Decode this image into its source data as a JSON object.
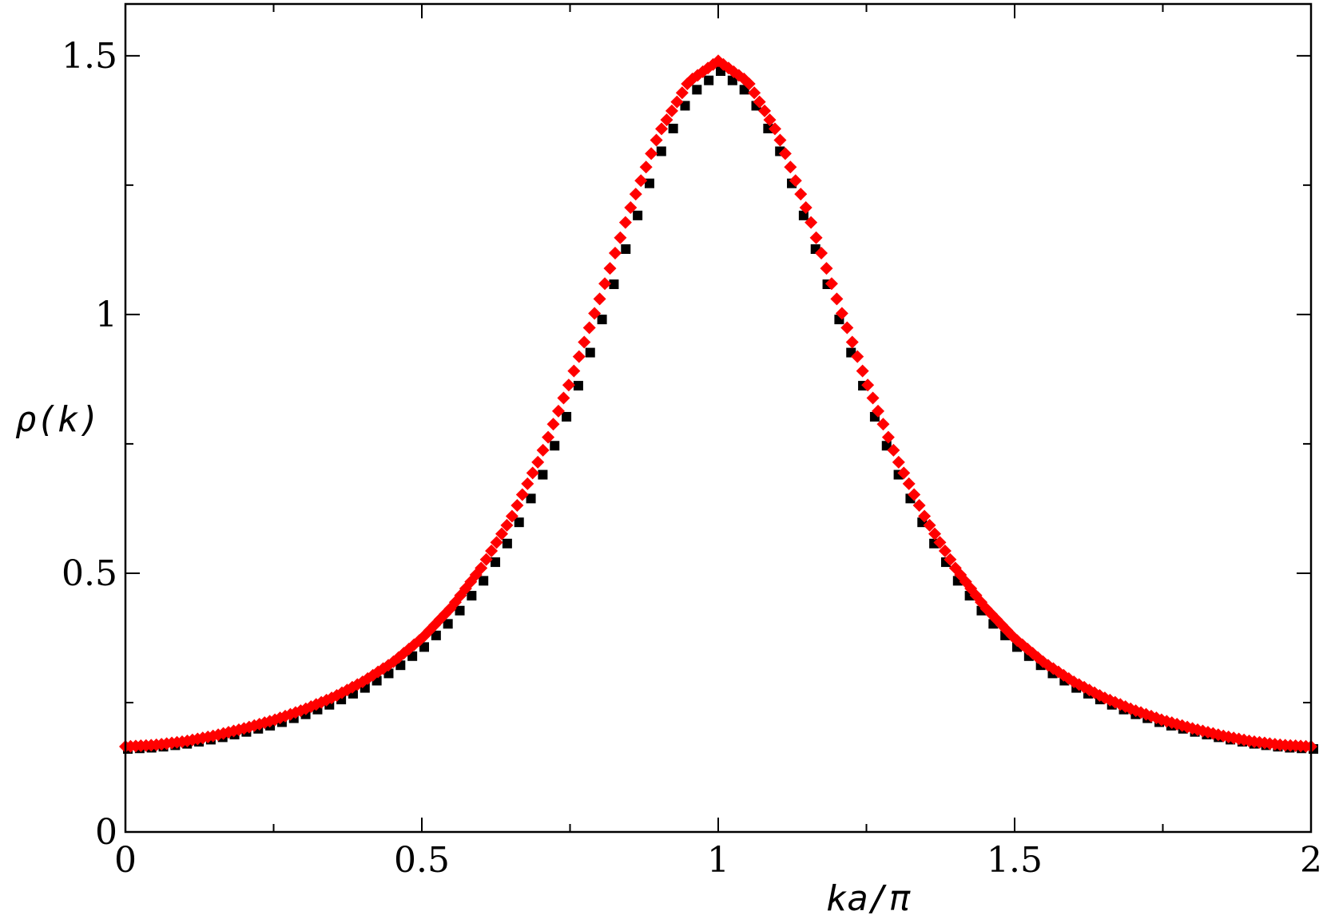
{
  "chart_data": {
    "type": "scatter",
    "title": "",
    "xlabel": "ka/π",
    "ylabel": "ρ(k)",
    "xlim": [
      0,
      2
    ],
    "ylim": [
      0,
      1.6
    ],
    "x_major_ticks": [
      0,
      0.5,
      1,
      1.5,
      2
    ],
    "x_tick_labels": [
      "0",
      "0.5",
      "1",
      "1.5",
      "2"
    ],
    "x_minor_step": 0.25,
    "y_major_ticks": [
      0,
      0.5,
      1,
      1.5
    ],
    "y_tick_labels": [
      "0",
      "0.5",
      "1",
      "1.5"
    ],
    "y_minor_step": 0.25,
    "grid": false,
    "legend": "none",
    "series": [
      {
        "marker": "square",
        "color": "#000000",
        "x": [
          0.0,
          0.05,
          0.1,
          0.15,
          0.2,
          0.25,
          0.3,
          0.35,
          0.4,
          0.45,
          0.5,
          0.55,
          0.6,
          0.65,
          0.7,
          0.75,
          0.8,
          0.85,
          0.9,
          0.95,
          1.0,
          1.05,
          1.1,
          1.15,
          1.2,
          1.25,
          1.3,
          1.35,
          1.4,
          1.45,
          1.5,
          1.55,
          1.6,
          1.65,
          1.7,
          1.75,
          1.8,
          1.85,
          1.9,
          1.95,
          2.0
        ],
        "y": [
          0.165,
          0.168,
          0.175,
          0.185,
          0.198,
          0.213,
          0.232,
          0.255,
          0.283,
          0.318,
          0.362,
          0.418,
          0.49,
          0.58,
          0.695,
          0.835,
          0.995,
          1.165,
          1.32,
          1.43,
          1.475,
          1.43,
          1.32,
          1.165,
          0.995,
          0.835,
          0.695,
          0.58,
          0.49,
          0.418,
          0.362,
          0.318,
          0.283,
          0.255,
          0.232,
          0.213,
          0.198,
          0.185,
          0.175,
          0.168,
          0.165
        ]
      },
      {
        "marker": "diamond",
        "color": "#ff0000",
        "x": [
          0.0,
          0.05,
          0.1,
          0.15,
          0.2,
          0.25,
          0.3,
          0.35,
          0.4,
          0.45,
          0.5,
          0.55,
          0.6,
          0.65,
          0.7,
          0.75,
          0.8,
          0.85,
          0.9,
          0.95,
          1.0,
          1.05,
          1.1,
          1.15,
          1.2,
          1.25,
          1.3,
          1.35,
          1.4,
          1.45,
          1.5,
          1.55,
          1.6,
          1.65,
          1.7,
          1.75,
          1.8,
          1.85,
          1.9,
          1.95,
          2.0
        ],
        "y": [
          0.165,
          0.168,
          0.175,
          0.186,
          0.2,
          0.216,
          0.236,
          0.26,
          0.29,
          0.327,
          0.374,
          0.434,
          0.51,
          0.605,
          0.725,
          0.87,
          1.03,
          1.2,
          1.35,
          1.45,
          1.49,
          1.45,
          1.35,
          1.2,
          1.03,
          0.87,
          0.725,
          0.605,
          0.51,
          0.434,
          0.374,
          0.327,
          0.29,
          0.26,
          0.236,
          0.216,
          0.2,
          0.186,
          0.175,
          0.168,
          0.165
        ]
      }
    ]
  }
}
